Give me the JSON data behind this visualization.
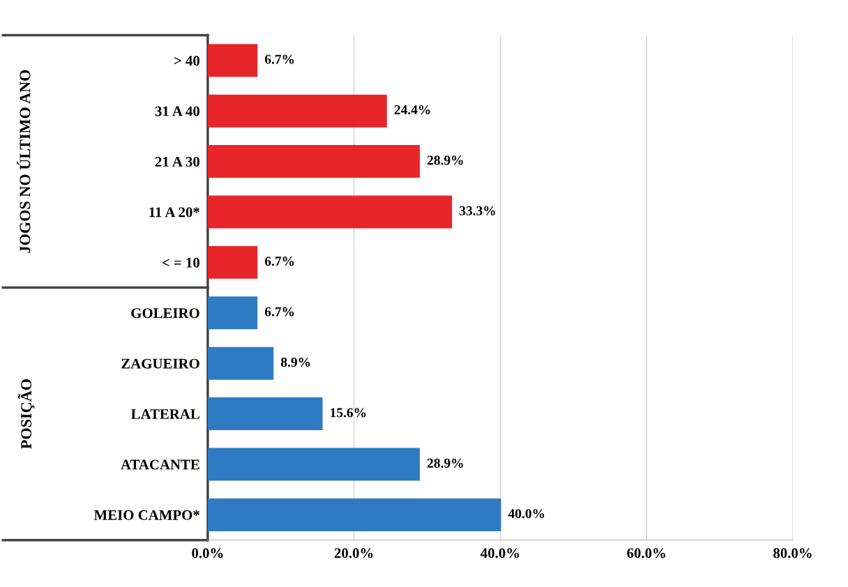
{
  "chart_data": {
    "type": "bar",
    "orientation": "horizontal",
    "categories": [
      "> 40",
      "31 A 40",
      "21 A 30",
      "11 A 20*",
      "< = 10",
      "GOLEIRO",
      "ZAGUEIRO",
      "LATERAL",
      "ATACANTE",
      "MEIO CAMPO*"
    ],
    "values": [
      6.7,
      24.4,
      28.9,
      33.3,
      6.7,
      6.7,
      8.9,
      15.6,
      28.9,
      40.0
    ],
    "colors": [
      "#e8262a",
      "#e8262a",
      "#e8262a",
      "#e8262a",
      "#e8262a",
      "#2e7bc4",
      "#2e7bc4",
      "#2e7bc4",
      "#2e7bc4",
      "#2e7bc4"
    ],
    "value_labels": [
      "6.7%",
      "24.4%",
      "28.9%",
      "33.3%",
      "6.7%",
      "6.7%",
      "8.9%",
      "15.6%",
      "28.9%",
      "40.0%"
    ],
    "xlim": [
      0,
      80
    ],
    "xticks": [
      {
        "value": 0,
        "label": "0.0%"
      },
      {
        "value": 20,
        "label": "20.0%"
      },
      {
        "value": 40,
        "label": "40.0%"
      },
      {
        "value": 60,
        "label": "60.0%"
      },
      {
        "value": 80,
        "label": "80.0%"
      }
    ],
    "grid": "x",
    "annotations": [
      "JOGOS NO ÚLTIMO ANO",
      "POSIÇÃO"
    ]
  }
}
